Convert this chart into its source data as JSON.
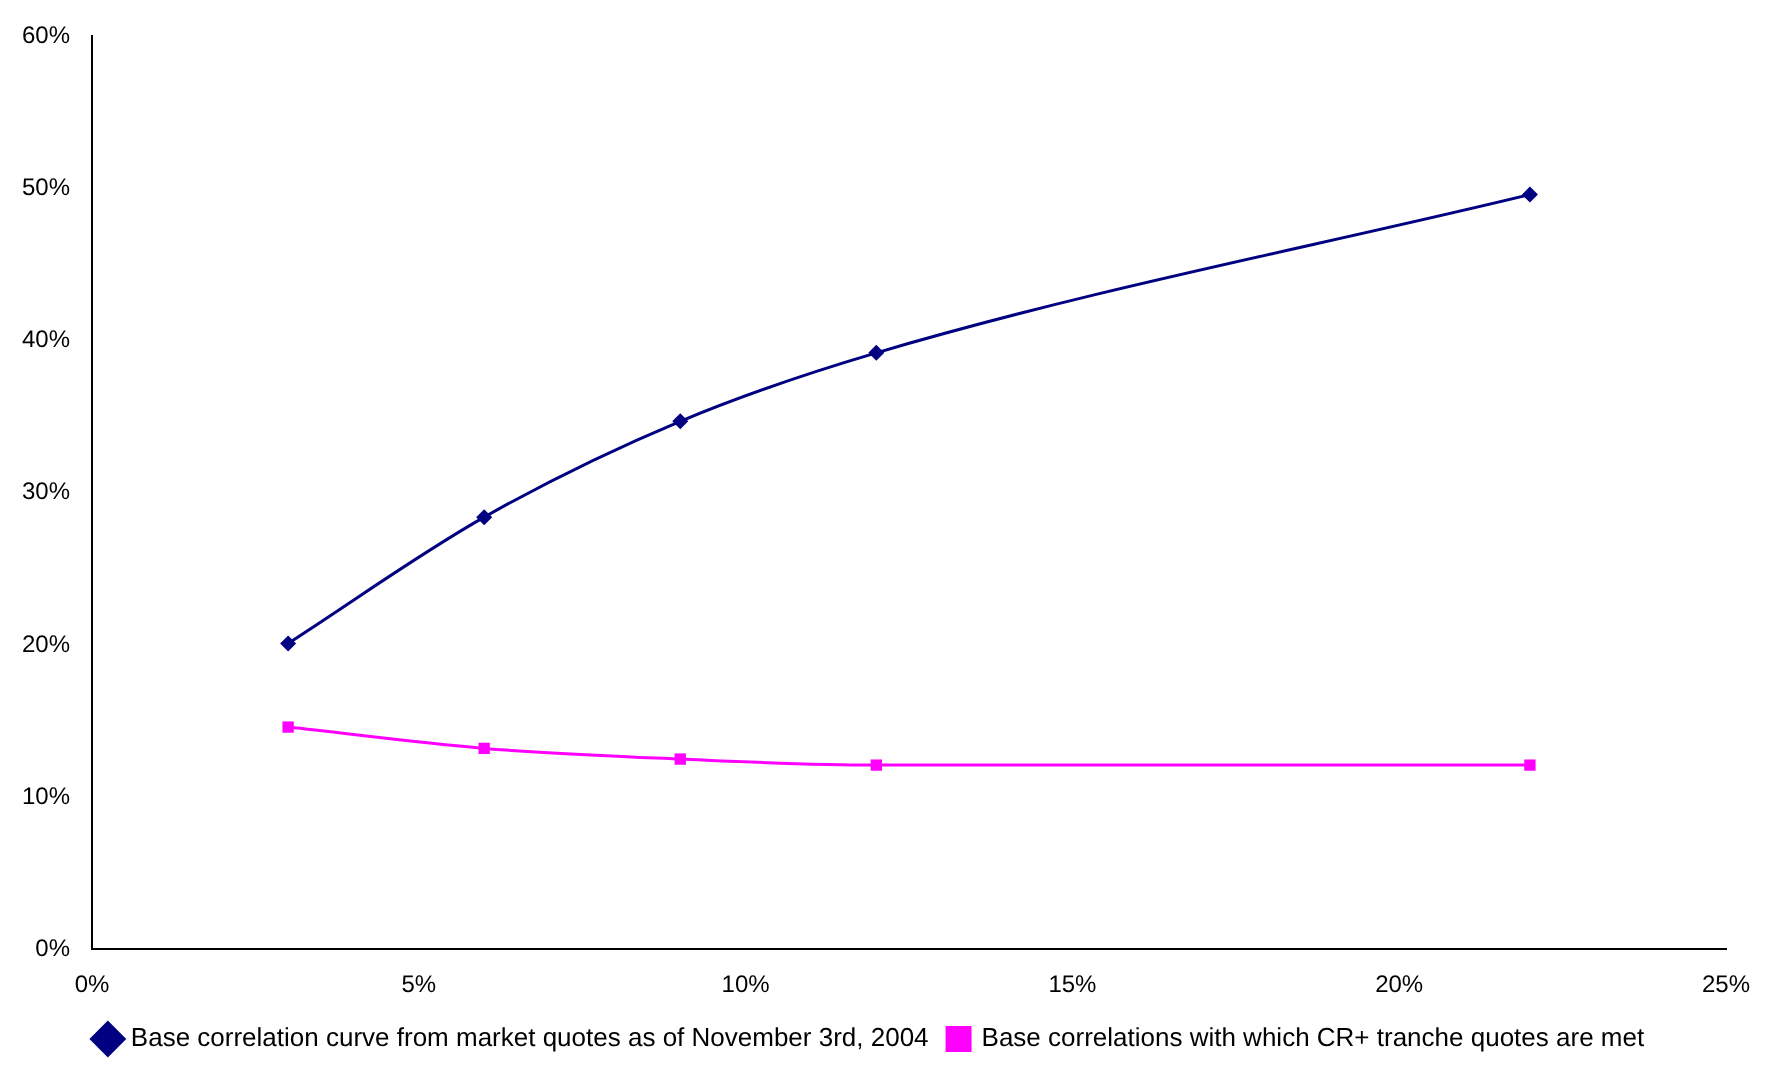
{
  "chart_data": {
    "type": "line",
    "x": [
      3,
      6,
      9,
      12,
      22
    ],
    "series": [
      {
        "name": "Base correlation curve from market quotes as of November 3rd, 2004",
        "color": "#000080",
        "marker": "diamond",
        "values": [
          20.1,
          28.4,
          34.7,
          39.2,
          49.6
        ]
      },
      {
        "name": "Base correlations with which CR+ tranche quotes are met",
        "color": "#ff00ff",
        "marker": "square",
        "values": [
          14.6,
          13.2,
          12.5,
          12.1,
          12.1
        ]
      }
    ],
    "xlim": [
      0,
      25
    ],
    "xticks": [
      {
        "value": 0,
        "label": "0%"
      },
      {
        "value": 5,
        "label": "5%"
      },
      {
        "value": 10,
        "label": "10%"
      },
      {
        "value": 15,
        "label": "15%"
      },
      {
        "value": 20,
        "label": "20%"
      },
      {
        "value": 25,
        "label": "25%"
      }
    ],
    "ylim": [
      0,
      60
    ],
    "yticks": [
      {
        "value": 0,
        "label": "0%"
      },
      {
        "value": 10,
        "label": "10%"
      },
      {
        "value": 20,
        "label": "20%"
      },
      {
        "value": 30,
        "label": "30%"
      },
      {
        "value": 40,
        "label": "40%"
      },
      {
        "value": 50,
        "label": "50%"
      },
      {
        "value": 60,
        "label": "60%"
      }
    ],
    "grid": false,
    "legend": "bottom"
  }
}
